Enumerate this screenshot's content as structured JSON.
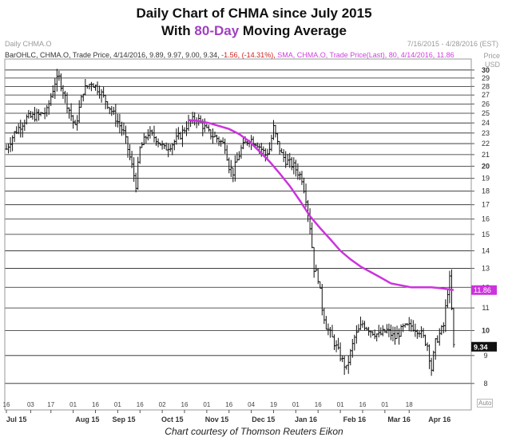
{
  "title": {
    "line1": "Daily Chart of CHMA since July 2015",
    "line2_prefix": "With ",
    "line2_accent": "80-Day",
    "line2_suffix": " Moving Average"
  },
  "header": {
    "symbol": "Daily CHMA.O",
    "date_range": "7/16/2015 - 4/28/2016 (EST)"
  },
  "legend": {
    "ohlc_text": "BarOHLC, CHMA.O, Trade Price, 4/14/2016, 9.89, 9.97, 9.00, 9.34,",
    "change_text": " -1.56, (-14.31%),",
    "sma_text": " SMA, CHMA.O, Trade Price(Last), 80, 4/14/2016, 11.86"
  },
  "price_axis": {
    "price": "Price",
    "currency": "USD"
  },
  "credit": "Chart courtesy of Thomson Reuters Eikon",
  "auto_label": "Auto",
  "chart_data": {
    "type": "ohlc",
    "title": "Daily Chart of CHMA since July 2015 With 80-Day Moving Average",
    "ylim": [
      7.5,
      30.8
    ],
    "y_scale": "log",
    "y_ticks": [
      8,
      9,
      10,
      11,
      12,
      13,
      14,
      15,
      16,
      17,
      18,
      19,
      20,
      21,
      22,
      23,
      24,
      25,
      26,
      27,
      28,
      29,
      30
    ],
    "y_tick_bold": [
      10,
      20,
      30
    ],
    "grid": true,
    "x_ticks": [
      "16",
      "03",
      "17",
      "01",
      "16",
      "01",
      "16",
      "02",
      "16",
      "01",
      "16",
      "04",
      "19",
      "01",
      "16",
      "01",
      "16",
      "01",
      "18"
    ],
    "month_labels": [
      "Jul 15",
      "Aug 15",
      "Sep 15",
      "Oct 15",
      "Nov 15",
      "Dec 15",
      "Jan 16",
      "Feb 16",
      "Mar 16",
      "Apr 16"
    ],
    "last_price": 9.34,
    "last_sma": 11.86,
    "colors": {
      "bars": "#222222",
      "sma": "#cc33dd",
      "last_price_label_bg": "#111111",
      "sma_label_bg": "#cc33dd"
    },
    "price_path": [
      [
        0,
        21.5
      ],
      [
        4,
        23.0
      ],
      [
        10,
        24.5
      ],
      [
        16,
        24.8
      ],
      [
        20,
        25.2
      ],
      [
        24,
        28.5
      ],
      [
        26,
        29.0
      ],
      [
        30,
        26.0
      ],
      [
        34,
        23.5
      ],
      [
        38,
        27.5
      ],
      [
        42,
        28.5
      ],
      [
        46,
        27.5
      ],
      [
        50,
        26.0
      ],
      [
        54,
        24.5
      ],
      [
        58,
        23.0
      ],
      [
        62,
        20.0
      ],
      [
        64,
        18.5
      ],
      [
        66,
        21.5
      ],
      [
        70,
        23.0
      ],
      [
        74,
        22.5
      ],
      [
        78,
        21.5
      ],
      [
        82,
        22.0
      ],
      [
        86,
        22.8
      ],
      [
        90,
        24.0
      ],
      [
        94,
        24.5
      ],
      [
        98,
        23.5
      ],
      [
        100,
        23.0
      ],
      [
        104,
        22.5
      ],
      [
        108,
        21.8
      ],
      [
        110,
        20.0
      ],
      [
        112,
        19.5
      ],
      [
        116,
        21.5
      ],
      [
        120,
        22.5
      ],
      [
        124,
        22.0
      ],
      [
        128,
        21.0
      ],
      [
        130,
        21.5
      ],
      [
        132,
        23.5
      ],
      [
        134,
        22.0
      ],
      [
        136,
        21.0
      ],
      [
        138,
        20.5
      ],
      [
        142,
        20.0
      ],
      [
        146,
        19.0
      ],
      [
        148,
        17.5
      ],
      [
        150,
        15.5
      ],
      [
        152,
        13.0
      ],
      [
        154,
        12.5
      ],
      [
        156,
        11.0
      ],
      [
        158,
        10.2
      ],
      [
        162,
        9.5
      ],
      [
        166,
        8.8
      ],
      [
        168,
        8.5
      ],
      [
        172,
        9.7
      ],
      [
        176,
        10.3
      ],
      [
        180,
        10.0
      ],
      [
        184,
        9.8
      ],
      [
        188,
        10.0
      ],
      [
        192,
        9.7
      ],
      [
        196,
        10.1
      ],
      [
        200,
        10.2
      ],
      [
        204,
        10.0
      ],
      [
        208,
        9.4
      ],
      [
        210,
        8.5
      ],
      [
        212,
        9.5
      ],
      [
        216,
        10.2
      ],
      [
        218,
        11.8
      ],
      [
        219,
        12.4
      ],
      [
        220,
        10.9
      ],
      [
        221,
        9.34
      ]
    ],
    "sma_80": [
      [
        90,
        24.3
      ],
      [
        95,
        24.2
      ],
      [
        100,
        24.0
      ],
      [
        105,
        23.7
      ],
      [
        110,
        23.4
      ],
      [
        115,
        22.9
      ],
      [
        120,
        22.2
      ],
      [
        125,
        21.3
      ],
      [
        130,
        20.4
      ],
      [
        135,
        19.4
      ],
      [
        140,
        18.4
      ],
      [
        145,
        17.3
      ],
      [
        150,
        16.2
      ],
      [
        155,
        15.4
      ],
      [
        160,
        14.7
      ],
      [
        165,
        14.0
      ],
      [
        170,
        13.5
      ],
      [
        175,
        13.1
      ],
      [
        180,
        12.8
      ],
      [
        185,
        12.5
      ],
      [
        190,
        12.2
      ],
      [
        195,
        12.1
      ],
      [
        200,
        12.0
      ],
      [
        205,
        12.0
      ],
      [
        210,
        12.0
      ],
      [
        215,
        11.95
      ],
      [
        221,
        11.86
      ]
    ]
  }
}
